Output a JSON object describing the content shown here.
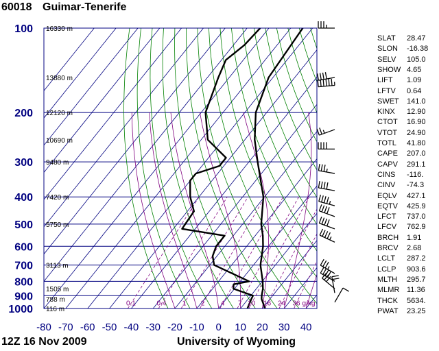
{
  "header": {
    "station": "60018",
    "place": "Guimar-Tenerife",
    "time": "12Z 16 Nov 2009",
    "source": "University of Wyoming"
  },
  "colors": {
    "frame": "#000080",
    "isotherm": "#000080",
    "dry_adiabat": "#008000",
    "moist_adiabat": "#7f007f",
    "mixing_ratio": "#800080",
    "profile": "#000000",
    "pressure_label": "#000080"
  },
  "chart_data": {
    "type": "skew-t log-p sounding",
    "x_axis": {
      "label": "",
      "unit": "C",
      "range": [
        -80,
        45
      ],
      "ticks": [
        -80,
        -70,
        -60,
        -50,
        -40,
        -30,
        -20,
        -10,
        0,
        10,
        20,
        30,
        40
      ]
    },
    "y_axis": {
      "label": "",
      "unit": "hPa",
      "scale": "log",
      "range": [
        1000,
        100
      ],
      "ticks": [
        100,
        200,
        300,
        400,
        500,
        600,
        700,
        800,
        900,
        1000
      ]
    },
    "height_labels": [
      "16330 m",
      "13880 m",
      "12120 m",
      "10690 m",
      "9480 m",
      "7420 m",
      "5750 m",
      "3113 m",
      "1505 m",
      "788 m",
      "116 m"
    ],
    "height_label_pressures": [
      100,
      150,
      200,
      250,
      300,
      400,
      500,
      700,
      850,
      925,
      1000
    ],
    "mixing_ratio_labels": [
      "0.1",
      "0.4",
      "1",
      "2",
      "4",
      "7",
      "10",
      "16",
      "24",
      "36",
      "g/kg"
    ],
    "mixing_ratio_values": [
      0.1,
      0.4,
      1,
      2,
      4,
      7,
      10,
      16,
      24,
      36
    ],
    "series": [
      {
        "values": [
          [
            1000,
            21.3
          ],
          [
            925,
            16.2
          ],
          [
            900,
            15.0
          ],
          [
            850,
            13.0
          ],
          [
            800,
            10.2
          ],
          [
            700,
            3.2
          ],
          [
            600,
            -2.5
          ],
          [
            550,
            -6.5
          ],
          [
            500,
            -11.5
          ],
          [
            400,
            -20.5
          ],
          [
            300,
            -36.0
          ],
          [
            250,
            -45.5
          ],
          [
            200,
            -55.0
          ],
          [
            150,
            -62.0
          ],
          [
            100,
            -64.5
          ]
        ]
      },
      {
        "values": [
          [
            1000,
            13.2
          ],
          [
            925,
            11.5
          ],
          [
            900,
            11.0
          ],
          [
            850,
            -0.5
          ],
          [
            820,
            -2.0
          ],
          [
            800,
            4.0
          ],
          [
            700,
            -18.0
          ],
          [
            650,
            -22.0
          ],
          [
            600,
            -24.0
          ],
          [
            550,
            -24.0
          ],
          [
            520,
            -46.0
          ],
          [
            450,
            -47.0
          ],
          [
            400,
            -54.0
          ],
          [
            350,
            -60.0
          ],
          [
            330,
            -60.0
          ],
          [
            310,
            -52.0
          ],
          [
            290,
            -52.0
          ],
          [
            250,
            -67.0
          ],
          [
            200,
            -78.0
          ],
          [
            150,
            -85.0
          ],
          [
            130,
            -88.0
          ],
          [
            115,
            -85.0
          ],
          [
            100,
            -84.0
          ]
        ]
      }
    ],
    "barbs": [
      {
        "p": 100,
        "dir": 270,
        "spd": 35
      },
      {
        "p": 150,
        "dir": 260,
        "spd": 40
      },
      {
        "p": 160,
        "dir": 265,
        "spd": 75
      },
      {
        "p": 230,
        "dir": 250,
        "spd": 25
      },
      {
        "p": 270,
        "dir": 270,
        "spd": 40
      },
      {
        "p": 330,
        "dir": 280,
        "spd": 35
      },
      {
        "p": 380,
        "dir": 280,
        "spd": 40
      },
      {
        "p": 430,
        "dir": 285,
        "spd": 45
      },
      {
        "p": 470,
        "dir": 290,
        "spd": 40
      },
      {
        "p": 520,
        "dir": 290,
        "spd": 40
      },
      {
        "p": 580,
        "dir": 295,
        "spd": 45
      },
      {
        "p": 750,
        "dir": 300,
        "spd": 35
      },
      {
        "p": 800,
        "dir": 300,
        "spd": 40
      },
      {
        "p": 850,
        "dir": 310,
        "spd": 30
      },
      {
        "p": 880,
        "dir": 350,
        "spd": 20
      },
      {
        "p": 950,
        "dir": 30,
        "spd": 10
      }
    ]
  },
  "indices": [
    {
      "name": "SLAT",
      "value": "28.47"
    },
    {
      "name": "SLON",
      "value": "-16.38"
    },
    {
      "name": "SELV",
      "value": "105.0"
    },
    {
      "name": "SHOW",
      "value": "4.65"
    },
    {
      "name": "LIFT",
      "value": "1.09"
    },
    {
      "name": "LFTV",
      "value": "0.64"
    },
    {
      "name": "SWET",
      "value": "141.0"
    },
    {
      "name": "KINX",
      "value": "12.90"
    },
    {
      "name": "CTOT",
      "value": "16.90"
    },
    {
      "name": "VTOT",
      "value": "24.90"
    },
    {
      "name": "TOTL",
      "value": "41.80"
    },
    {
      "name": "CAPE",
      "value": "207.0"
    },
    {
      "name": "CAPV",
      "value": "291.1"
    },
    {
      "name": "CINS",
      "value": "-116."
    },
    {
      "name": "CINV",
      "value": "-74.3"
    },
    {
      "name": "EQLV",
      "value": "427.1"
    },
    {
      "name": "EQTV",
      "value": "425.9"
    },
    {
      "name": "LFCT",
      "value": "737.0"
    },
    {
      "name": "LFCV",
      "value": "762.9"
    },
    {
      "name": "BRCH",
      "value": "1.91"
    },
    {
      "name": "BRCV",
      "value": "2.68"
    },
    {
      "name": "LCLT",
      "value": "287.2"
    },
    {
      "name": "LCLP",
      "value": "903.6"
    },
    {
      "name": "MLTH",
      "value": "295.7"
    },
    {
      "name": "MLMR",
      "value": "11.36"
    },
    {
      "name": "THCK",
      "value": "5634."
    },
    {
      "name": "PWAT",
      "value": "23.25"
    }
  ]
}
